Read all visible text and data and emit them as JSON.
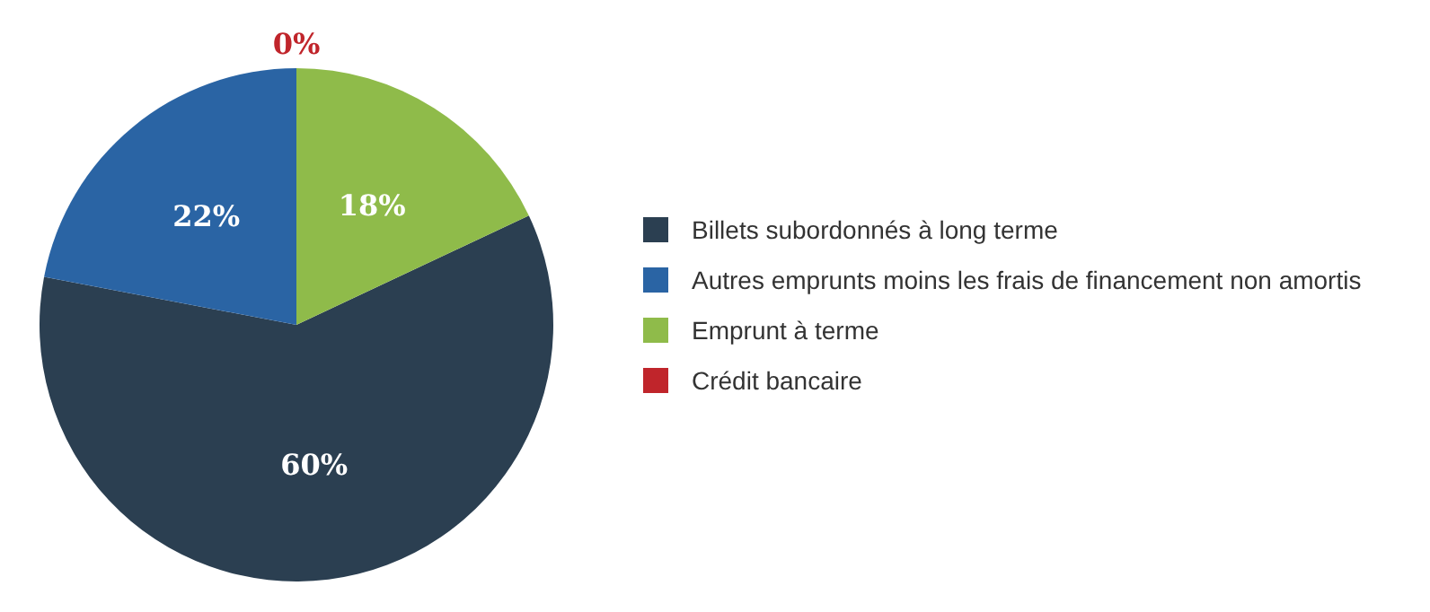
{
  "chart_data": {
    "type": "pie",
    "categories": [
      "Billets subordonnés à long terme",
      "Autres emprunts moins les frais de financement non amortis",
      "Emprunt à terme",
      "Crédit bancaire"
    ],
    "values": [
      60,
      22,
      18,
      0
    ],
    "colors": [
      "#2b3f51",
      "#2a64a4",
      "#8fbb4a",
      "#c0252b"
    ],
    "value_labels": [
      "60%",
      "22%",
      "18%",
      "0%"
    ],
    "legend": "right"
  }
}
